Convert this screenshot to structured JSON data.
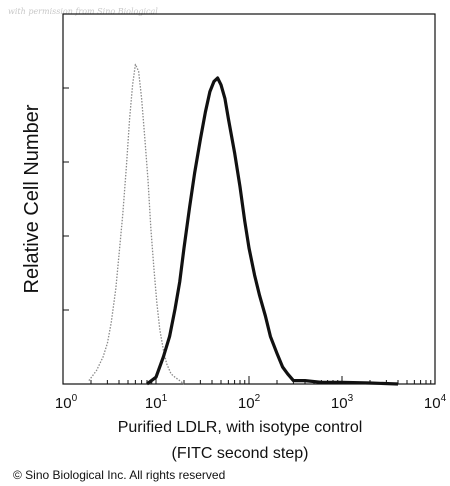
{
  "chart_data": {
    "type": "line",
    "watermark": "with permission from Sino Biological",
    "ylabel": "Relative Cell Number",
    "xlabel": "Purified LDLR, with isotype control",
    "xlabel2": "(FITC second step)",
    "copyright": "© Sino Biological Inc. All rights reserved",
    "xscale": "log",
    "xlim": [
      1,
      10000
    ],
    "ylim": [
      0,
      100
    ],
    "grid": false,
    "x_ticks": [
      {
        "base": "10",
        "exp": "0"
      },
      {
        "base": "10",
        "exp": "1"
      },
      {
        "base": "10",
        "exp": "2"
      },
      {
        "base": "10",
        "exp": "3"
      },
      {
        "base": "10",
        "exp": "4"
      }
    ],
    "series": [
      {
        "role": "isotype control",
        "style": "dotted-gray",
        "color": "#8a8a8a",
        "x": [
          1.9,
          2.3,
          2.7,
          3.0,
          3.3,
          3.7,
          4.0,
          4.4,
          4.8,
          5.2,
          5.6,
          6.0,
          6.5,
          7.0,
          7.6,
          8.2,
          8.8,
          9.5,
          10.2,
          11.0,
          12.0,
          13.0,
          14.5,
          16.0,
          18.0,
          20.0
        ],
        "y": [
          1,
          4,
          8,
          12,
          18,
          28,
          38,
          50,
          64,
          78,
          88,
          94,
          92,
          84,
          72,
          60,
          46,
          34,
          24,
          16,
          10,
          6,
          3,
          2,
          1,
          0
        ]
      },
      {
        "role": "LDLR",
        "style": "solid-black",
        "color": "#111111",
        "x": [
          8,
          10,
          12,
          14,
          16,
          18,
          20,
          23,
          26,
          30,
          34,
          38,
          42,
          46,
          50,
          55,
          60,
          70,
          80,
          90,
          100,
          115,
          130,
          150,
          170,
          200,
          230,
          260,
          300,
          400,
          600,
          1000,
          2000,
          4000
        ],
        "y": [
          0,
          2,
          8,
          14,
          22,
          30,
          40,
          52,
          62,
          72,
          80,
          86,
          89,
          90,
          88,
          84,
          78,
          68,
          58,
          48,
          40,
          32,
          26,
          20,
          14,
          9,
          5,
          3,
          1,
          1,
          0.5,
          0.5,
          0.3,
          0
        ]
      }
    ]
  }
}
